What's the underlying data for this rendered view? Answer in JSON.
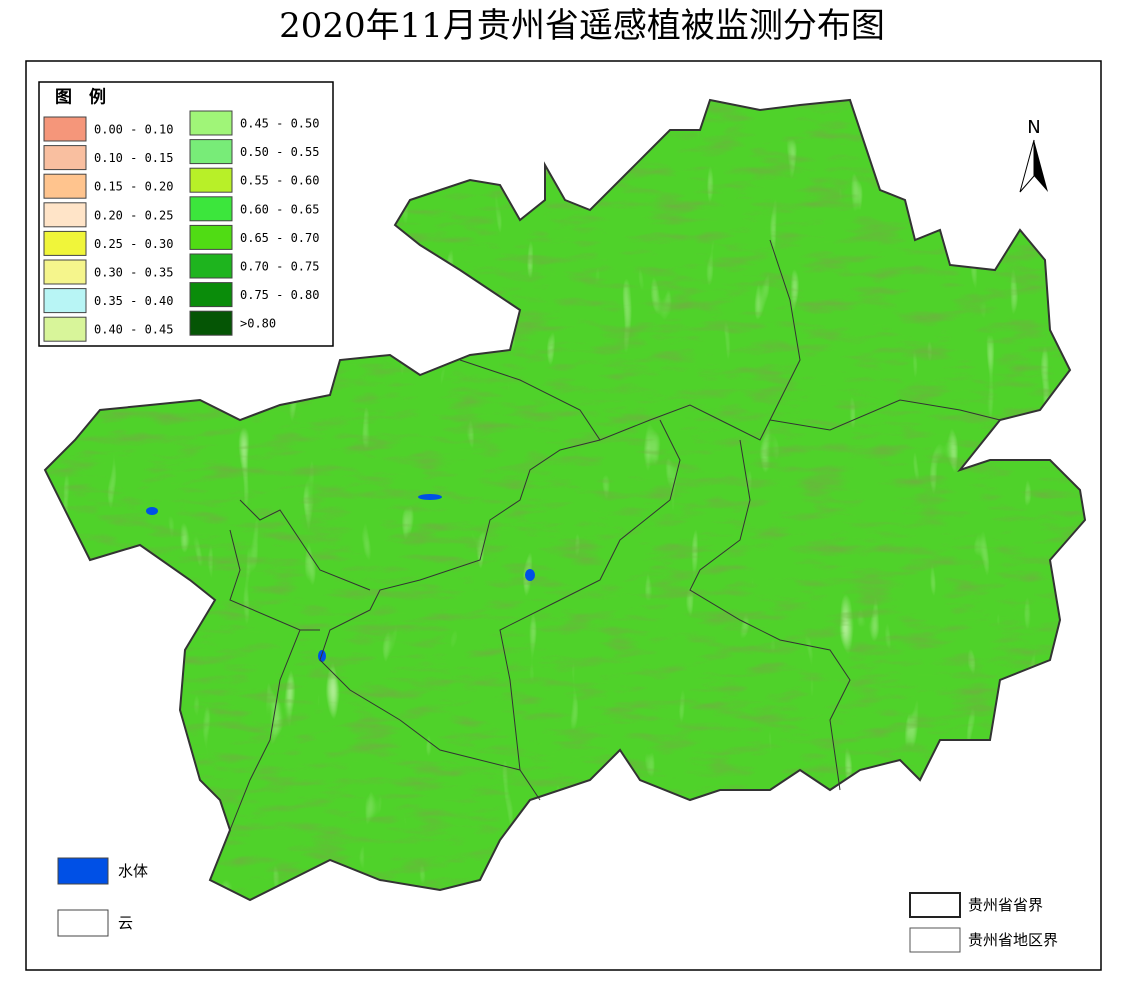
{
  "title": "2020年11月贵州省遥感植被监测分布图",
  "legend": {
    "title": "图　例",
    "items": [
      {
        "label": "0.00 - 0.10",
        "color": "#f5967a"
      },
      {
        "label": "0.10 - 0.15",
        "color": "#f9bfa0"
      },
      {
        "label": "0.15 - 0.20",
        "color": "#ffc48e"
      },
      {
        "label": "0.20 - 0.25",
        "color": "#ffe4c8"
      },
      {
        "label": "0.25 - 0.30",
        "color": "#f0f53a"
      },
      {
        "label": "0.30 - 0.35",
        "color": "#f5f58c"
      },
      {
        "label": "0.35 - 0.40",
        "color": "#b8f5f5"
      },
      {
        "label": "0.40 - 0.45",
        "color": "#d8f59a"
      },
      {
        "label": "0.45 - 0.50",
        "color": "#a0f578"
      },
      {
        "label": "0.50 - 0.55",
        "color": "#78ec78"
      },
      {
        "label": "0.55 - 0.60",
        "color": "#b8f028"
      },
      {
        "label": "0.60 - 0.65",
        "color": "#3ce63c"
      },
      {
        "label": "0.65 - 0.70",
        "color": "#50dc14"
      },
      {
        "label": "0.70 - 0.75",
        "color": "#1eb41e"
      },
      {
        "label": "0.75 - 0.80",
        "color": "#0a8c0a"
      },
      {
        "label": ">0.80",
        "color": "#055505"
      }
    ]
  },
  "north": "N",
  "water": {
    "label": "水体",
    "color": "#0050e6"
  },
  "cloud": {
    "label": "云",
    "color": "#ffffff"
  },
  "boundaries": [
    {
      "label": "贵州省省界"
    },
    {
      "label": "贵州省地区界"
    }
  ]
}
